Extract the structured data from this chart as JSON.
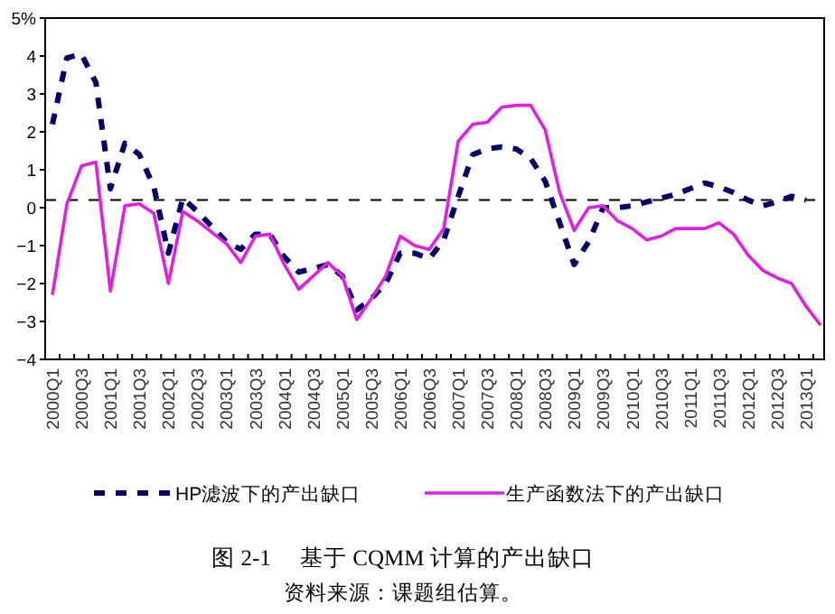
{
  "chart_data": {
    "type": "line",
    "title": "图 2-1　 基于 CQMM 计算的产出缺口",
    "annotations": [
      "资料来源：课题组估算。"
    ],
    "categories": [
      "2000Q1",
      null,
      "2000Q3",
      null,
      "2001Q1",
      null,
      "2001Q3",
      null,
      "2002Q1",
      null,
      "2002Q3",
      null,
      "2003Q1",
      null,
      "2003Q3",
      null,
      "2004Q1",
      null,
      "2004Q3",
      null,
      "2005Q1",
      null,
      "2005Q3",
      null,
      "2006Q1",
      null,
      "2006Q3",
      null,
      "2007Q1",
      null,
      "2007Q3",
      null,
      "2008Q1",
      null,
      "2008Q3",
      null,
      "2009Q1",
      null,
      "2009Q3",
      null,
      "2010Q1",
      null,
      "2010Q3",
      null,
      "2011Q1",
      null,
      "2011Q3",
      null,
      "2012Q1",
      null,
      "2012Q3",
      null,
      "2013Q1",
      null
    ],
    "series": [
      {
        "name": "HP滤波下的产出缺口",
        "color": "#000066",
        "line_style": "dashed",
        "values": [
          2.2,
          3.95,
          4.05,
          3.3,
          0.5,
          1.7,
          1.4,
          0.55,
          -1.2,
          0.25,
          -0.1,
          -0.5,
          -0.9,
          -1.1,
          -0.7,
          -0.7,
          -1.3,
          -1.7,
          -1.6,
          -1.5,
          -1.8,
          -2.7,
          -2.4,
          -2.0,
          -1.2,
          -1.2,
          -1.35,
          -0.85,
          0.3,
          1.4,
          1.55,
          1.6,
          1.55,
          1.3,
          0.7,
          -0.4,
          -1.5,
          -0.9,
          0.0,
          0.0,
          0.05,
          0.15,
          0.25,
          0.35,
          0.5,
          0.65,
          0.55,
          0.4,
          0.2,
          0.05,
          0.15,
          0.3,
          0.2,
          null
        ]
      },
      {
        "name": "生产函数法下的产出缺口",
        "color": "#e020e0",
        "line_style": "solid",
        "values": [
          -2.3,
          0.1,
          1.1,
          1.2,
          -2.2,
          0.05,
          0.1,
          -0.15,
          -2.0,
          -0.1,
          -0.35,
          -0.65,
          -0.95,
          -1.45,
          -0.75,
          -0.7,
          -1.5,
          -2.15,
          -1.8,
          -1.45,
          -1.8,
          -2.95,
          -2.4,
          -1.8,
          -0.75,
          -1.0,
          -1.1,
          -0.55,
          1.75,
          2.2,
          2.25,
          2.65,
          2.7,
          2.7,
          2.05,
          0.4,
          -0.6,
          0.0,
          0.05,
          -0.35,
          -0.55,
          -0.85,
          -0.75,
          -0.55,
          -0.55,
          -0.55,
          -0.4,
          -0.7,
          -1.25,
          -1.65,
          -1.85,
          -2.0,
          -2.6,
          -3.1
        ]
      }
    ],
    "ylim": [
      -4,
      5
    ],
    "yticks": [
      -4,
      -3,
      -2,
      -1,
      0,
      1,
      2,
      3,
      4,
      {
        "value": 5,
        "label": "5%"
      }
    ],
    "ref_lines": [
      {
        "axis": "y",
        "value": 0.2,
        "color": "#000000",
        "line_style": "dashed"
      }
    ],
    "legend": "bottom"
  }
}
